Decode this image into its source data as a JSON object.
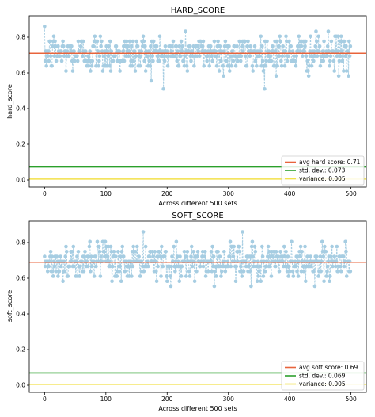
{
  "chart_data": [
    {
      "type": "line",
      "title": "HARD_SCORE",
      "xlabel": "Across different 500 sets",
      "ylabel": "hard_score",
      "xlim": [
        -25,
        525
      ],
      "ylim": [
        -0.04,
        0.92
      ],
      "xticks": [
        0,
        100,
        200,
        300,
        400,
        500
      ],
      "yticks": [
        0.0,
        0.2,
        0.4,
        0.6,
        0.8
      ],
      "ytick_labels": [
        "0.0",
        "0.2",
        "0.4",
        "0.6",
        "0.8"
      ],
      "grid": false,
      "legend_position": "lower-right",
      "series": [
        {
          "role": "samples",
          "points": 500,
          "mean": 0.71,
          "std": 0.073,
          "min": 0.51,
          "max": 0.87,
          "color": "#a6cde2",
          "style": "dashed-line-with-dot-markers"
        }
      ],
      "reference_lines": [
        {
          "label": "avg hard score: 0.71",
          "y": 0.71,
          "color": "#e8643c"
        },
        {
          "label": "std. dev.: 0.073",
          "y": 0.073,
          "color": "#2ca02c"
        },
        {
          "label": "variance: 0.005",
          "y": 0.005,
          "color": "#f2e14a"
        }
      ]
    },
    {
      "type": "line",
      "title": "SOFT_SCORE",
      "xlabel": "Across different 500 sets",
      "ylabel": "soft_score",
      "xlim": [
        -25,
        525
      ],
      "ylim": [
        -0.04,
        0.92
      ],
      "xticks": [
        0,
        100,
        200,
        300,
        400,
        500
      ],
      "yticks": [
        0.0,
        0.2,
        0.4,
        0.6,
        0.8
      ],
      "ytick_labels": [
        "0.0",
        "0.2",
        "0.4",
        "0.6",
        "0.8"
      ],
      "grid": false,
      "legend_position": "lower-right",
      "series": [
        {
          "role": "samples",
          "points": 500,
          "mean": 0.69,
          "std": 0.069,
          "min": 0.44,
          "max": 0.86,
          "color": "#a6cde2",
          "style": "dashed-line-with-dot-markers"
        }
      ],
      "reference_lines": [
        {
          "label": "avg soft score: 0.69",
          "y": 0.69,
          "color": "#e8643c"
        },
        {
          "label": "std. dev.: 0.069",
          "y": 0.069,
          "color": "#2ca02c"
        },
        {
          "label": "variance: 0.005",
          "y": 0.005,
          "color": "#f2e14a"
        }
      ]
    }
  ]
}
